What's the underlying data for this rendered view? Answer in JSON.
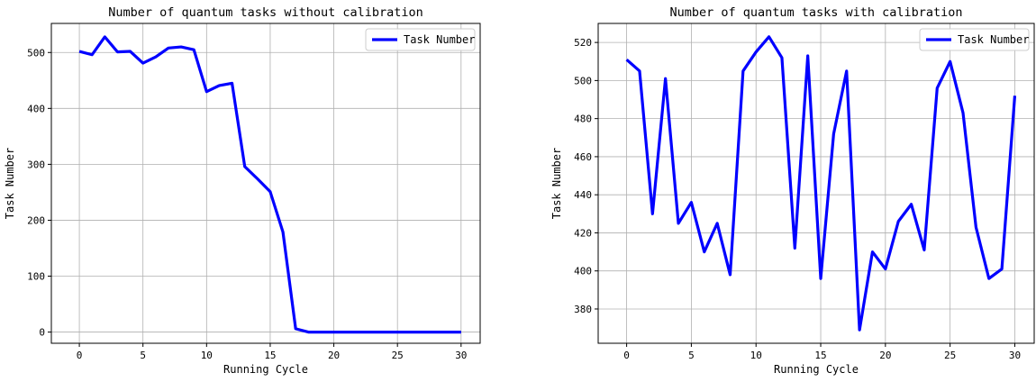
{
  "chart_data": [
    {
      "type": "line",
      "title": "Number of quantum tasks without calibration",
      "xlabel": "Running Cycle",
      "ylabel": "Task Number",
      "xlim": [
        -2.2,
        31.5
      ],
      "ylim": [
        -20,
        552
      ],
      "xticks": [
        0,
        5,
        10,
        15,
        20,
        25,
        30
      ],
      "yticks": [
        0,
        100,
        200,
        300,
        400,
        500
      ],
      "grid": true,
      "legend_position": "top-right",
      "series": [
        {
          "name": "Task Number",
          "color": "#0000ff",
          "x": [
            0,
            1,
            2,
            3,
            4,
            5,
            6,
            7,
            8,
            9,
            10,
            11,
            12,
            13,
            14,
            15,
            16,
            17,
            18,
            19,
            20,
            21,
            22,
            23,
            24,
            25,
            26,
            27,
            28,
            29,
            30
          ],
          "values": [
            502,
            496,
            528,
            501,
            502,
            481,
            492,
            508,
            510,
            505,
            430,
            441,
            445,
            296,
            274,
            251,
            179,
            6,
            0,
            0,
            0,
            0,
            0,
            0,
            0,
            0,
            0,
            0,
            0,
            0,
            0
          ]
        }
      ]
    },
    {
      "type": "line",
      "title": "Number of quantum tasks with calibration",
      "xlabel": "Running Cycle",
      "ylabel": "Task Number",
      "xlim": [
        -2.2,
        31.5
      ],
      "ylim": [
        362,
        530
      ],
      "xticks": [
        0,
        5,
        10,
        15,
        20,
        25,
        30
      ],
      "yticks": [
        380,
        400,
        420,
        440,
        460,
        480,
        500,
        520
      ],
      "grid": true,
      "legend_position": "top-right",
      "series": [
        {
          "name": "Task Number",
          "color": "#0000ff",
          "x": [
            0,
            1,
            2,
            3,
            4,
            5,
            6,
            7,
            8,
            9,
            10,
            11,
            12,
            13,
            14,
            15,
            16,
            17,
            18,
            19,
            20,
            21,
            22,
            23,
            24,
            25,
            26,
            27,
            28,
            29,
            30
          ],
          "values": [
            511,
            505,
            430,
            501,
            425,
            436,
            410,
            425,
            398,
            505,
            515,
            523,
            512,
            412,
            513,
            396,
            472,
            505,
            369,
            410,
            401,
            426,
            435,
            411,
            496,
            510,
            483,
            423,
            396,
            401,
            492
          ]
        }
      ]
    }
  ]
}
